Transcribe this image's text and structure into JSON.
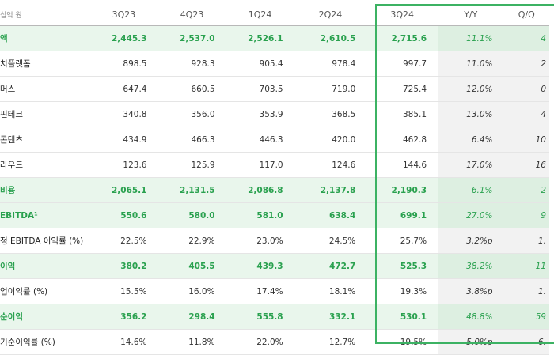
{
  "header": {
    "unit": "십억 원",
    "columns": [
      "3Q23",
      "4Q23",
      "1Q24",
      "2Q24",
      "3Q24",
      "Y/Y",
      "Q/Q"
    ]
  },
  "rows": [
    {
      "label": "액",
      "v": [
        "2,445.3",
        "2,537.0",
        "2,526.1",
        "2,610.5",
        "2,715.6"
      ],
      "y": "11.1%",
      "q": "4",
      "highlight": true
    },
    {
      "label": "치플랫폼",
      "v": [
        "898.5",
        "928.3",
        "905.4",
        "978.4",
        "997.7"
      ],
      "y": "11.0%",
      "q": "2",
      "highlight": false
    },
    {
      "label": "머스",
      "v": [
        "647.4",
        "660.5",
        "703.5",
        "719.0",
        "725.4"
      ],
      "y": "12.0%",
      "q": "0",
      "highlight": false
    },
    {
      "label": "핀테크",
      "v": [
        "340.8",
        "356.0",
        "353.9",
        "368.5",
        "385.1"
      ],
      "y": "13.0%",
      "q": "4",
      "highlight": false
    },
    {
      "label": "콘텐츠",
      "v": [
        "434.9",
        "466.3",
        "446.3",
        "420.0",
        "462.8"
      ],
      "y": "6.4%",
      "q": "10",
      "highlight": false
    },
    {
      "label": "라우드",
      "v": [
        "123.6",
        "125.9",
        "117.0",
        "124.6",
        "144.6"
      ],
      "y": "17.0%",
      "q": "16",
      "highlight": false
    },
    {
      "label": "비용",
      "v": [
        "2,065.1",
        "2,131.5",
        "2,086.8",
        "2,137.8",
        "2,190.3"
      ],
      "y": "6.1%",
      "q": "2",
      "highlight": true
    },
    {
      "label": "EBITDA¹",
      "v": [
        "550.6",
        "580.0",
        "581.0",
        "638.4",
        "699.1"
      ],
      "y": "27.0%",
      "q": "9",
      "highlight": true
    },
    {
      "label": "정 EBITDA 이익률 (%)",
      "v": [
        "22.5%",
        "22.9%",
        "23.0%",
        "24.5%",
        "25.7%"
      ],
      "y": "3.2%p",
      "q": "1.",
      "highlight": false
    },
    {
      "label": "이익",
      "v": [
        "380.2",
        "405.5",
        "439.3",
        "472.7",
        "525.3"
      ],
      "y": "38.2%",
      "q": "11",
      "highlight": true
    },
    {
      "label": "업이익률 (%)",
      "v": [
        "15.5%",
        "16.0%",
        "17.4%",
        "18.1%",
        "19.3%"
      ],
      "y": "3.8%p",
      "q": "1.",
      "highlight": false
    },
    {
      "label": "순이익",
      "v": [
        "356.2",
        "298.4",
        "555.8",
        "332.1",
        "530.1"
      ],
      "y": "48.8%",
      "q": "59",
      "highlight": true
    },
    {
      "label": "기순이익률 (%)",
      "v": [
        "14.6%",
        "11.8%",
        "22.0%",
        "12.7%",
        "19.5%"
      ],
      "y": "5.0%p",
      "q": "6.",
      "highlight": false
    }
  ]
}
